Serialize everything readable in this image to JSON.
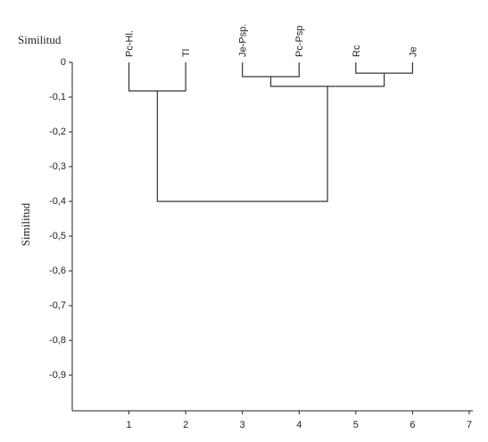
{
  "chart_data": {
    "type": "dendrogram",
    "top_label": "Similitud",
    "ylabel": "Similitud",
    "leaves": [
      {
        "label": "Pc-Hl.",
        "x": 1
      },
      {
        "label": "Tl",
        "x": 2
      },
      {
        "label": "Je-Psp.",
        "x": 3
      },
      {
        "label": "Pc-Psp",
        "x": 4
      },
      {
        "label": "Rc",
        "x": 5
      },
      {
        "label": "Je",
        "x": 6
      }
    ],
    "merges": [
      {
        "children": [
          0,
          1
        ],
        "height": -0.082
      },
      {
        "children": [
          2,
          3
        ],
        "height": -0.041
      },
      {
        "children": [
          4,
          5
        ],
        "height": -0.031
      },
      {
        "children": [
          7,
          8
        ],
        "height": -0.069
      },
      {
        "children": [
          6,
          9
        ],
        "height": -0.4
      }
    ],
    "color": "#333333",
    "xlim": [
      0,
      7
    ],
    "xticks": [
      1,
      2,
      3,
      4,
      5,
      6,
      7
    ],
    "ylim": [
      -1,
      0
    ],
    "yticks": [
      0,
      {
        "value": -0.1,
        "label": "-0,1"
      },
      {
        "value": -0.2,
        "label": "-0,2"
      },
      {
        "value": -0.3,
        "label": "-0,3"
      },
      {
        "value": -0.4,
        "label": "-0,4"
      },
      {
        "value": -0.5,
        "label": "-0,5"
      },
      {
        "value": -0.6,
        "label": "-0,6"
      },
      {
        "value": -0.7,
        "label": "-0,7"
      },
      {
        "value": -0.8,
        "label": "-0,8"
      },
      {
        "value": -0.9,
        "label": "-0,9"
      }
    ]
  }
}
